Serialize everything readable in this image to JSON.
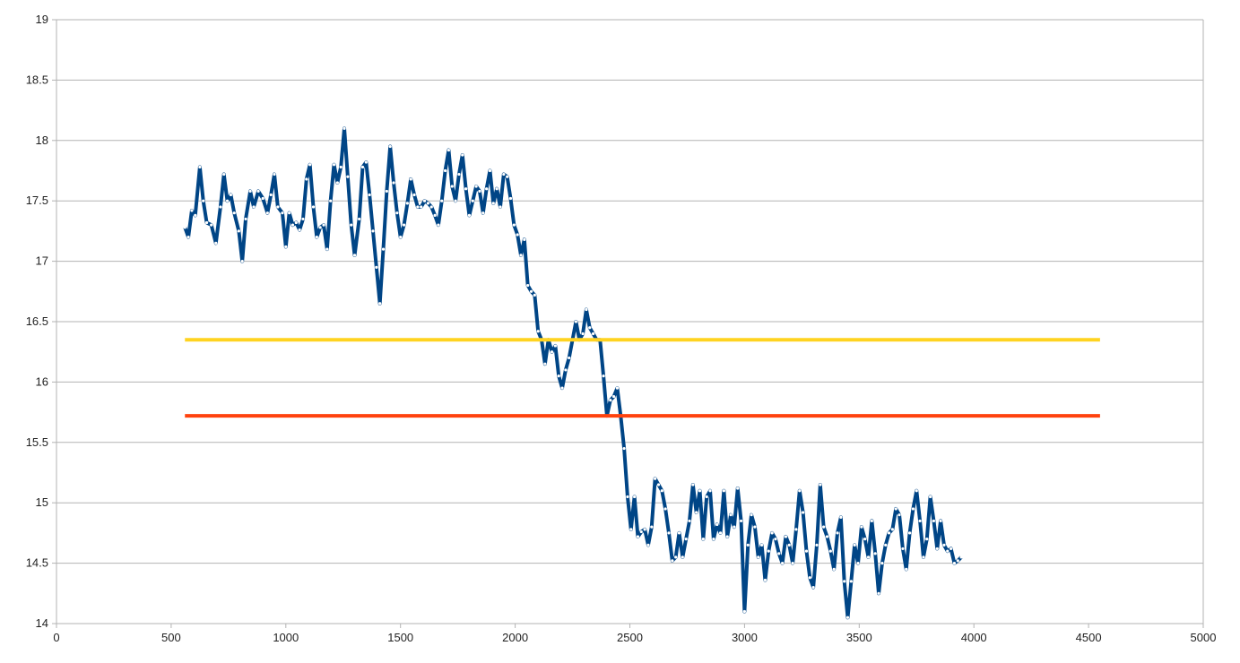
{
  "chart_data": {
    "type": "line",
    "title": "",
    "xlabel": "",
    "ylabel": "",
    "xlim": [
      0,
      5000
    ],
    "ylim": [
      14,
      19
    ],
    "xticks": [
      0,
      500,
      1000,
      1500,
      2000,
      2500,
      3000,
      3500,
      4000,
      4500,
      5000
    ],
    "yticks": [
      14,
      14.5,
      15,
      15.5,
      16,
      16.5,
      17,
      17.5,
      18,
      18.5,
      19
    ],
    "grid": "horizontal",
    "legend": "none",
    "series": [
      {
        "color": "#004586",
        "points": [
          [
            560,
            17.28
          ],
          [
            575,
            17.2
          ],
          [
            590,
            17.42
          ],
          [
            605,
            17.38
          ],
          [
            625,
            17.78
          ],
          [
            640,
            17.5
          ],
          [
            655,
            17.32
          ],
          [
            675,
            17.3
          ],
          [
            695,
            17.15
          ],
          [
            715,
            17.45
          ],
          [
            730,
            17.72
          ],
          [
            745,
            17.5
          ],
          [
            760,
            17.55
          ],
          [
            775,
            17.4
          ],
          [
            795,
            17.25
          ],
          [
            810,
            17.0
          ],
          [
            825,
            17.35
          ],
          [
            845,
            17.58
          ],
          [
            860,
            17.45
          ],
          [
            880,
            17.58
          ],
          [
            900,
            17.52
          ],
          [
            920,
            17.4
          ],
          [
            935,
            17.55
          ],
          [
            950,
            17.72
          ],
          [
            965,
            17.45
          ],
          [
            985,
            17.4
          ],
          [
            1000,
            17.12
          ],
          [
            1015,
            17.4
          ],
          [
            1030,
            17.3
          ],
          [
            1045,
            17.32
          ],
          [
            1060,
            17.26
          ],
          [
            1075,
            17.35
          ],
          [
            1090,
            17.68
          ],
          [
            1105,
            17.8
          ],
          [
            1120,
            17.45
          ],
          [
            1135,
            17.2
          ],
          [
            1150,
            17.28
          ],
          [
            1165,
            17.3
          ],
          [
            1180,
            17.1
          ],
          [
            1195,
            17.5
          ],
          [
            1210,
            17.8
          ],
          [
            1225,
            17.65
          ],
          [
            1240,
            17.78
          ],
          [
            1255,
            18.1
          ],
          [
            1270,
            17.7
          ],
          [
            1285,
            17.3
          ],
          [
            1300,
            17.05
          ],
          [
            1320,
            17.35
          ],
          [
            1335,
            17.78
          ],
          [
            1350,
            17.82
          ],
          [
            1365,
            17.55
          ],
          [
            1380,
            17.25
          ],
          [
            1395,
            16.95
          ],
          [
            1410,
            16.65
          ],
          [
            1425,
            17.1
          ],
          [
            1440,
            17.58
          ],
          [
            1455,
            17.95
          ],
          [
            1470,
            17.65
          ],
          [
            1485,
            17.4
          ],
          [
            1500,
            17.2
          ],
          [
            1515,
            17.3
          ],
          [
            1530,
            17.48
          ],
          [
            1545,
            17.68
          ],
          [
            1560,
            17.55
          ],
          [
            1575,
            17.45
          ],
          [
            1590,
            17.45
          ],
          [
            1605,
            17.5
          ],
          [
            1620,
            17.48
          ],
          [
            1635,
            17.45
          ],
          [
            1650,
            17.38
          ],
          [
            1665,
            17.3
          ],
          [
            1680,
            17.5
          ],
          [
            1695,
            17.75
          ],
          [
            1710,
            17.92
          ],
          [
            1725,
            17.62
          ],
          [
            1740,
            17.5
          ],
          [
            1755,
            17.72
          ],
          [
            1770,
            17.88
          ],
          [
            1785,
            17.6
          ],
          [
            1800,
            17.38
          ],
          [
            1815,
            17.5
          ],
          [
            1830,
            17.62
          ],
          [
            1845,
            17.58
          ],
          [
            1860,
            17.4
          ],
          [
            1875,
            17.6
          ],
          [
            1890,
            17.75
          ],
          [
            1905,
            17.48
          ],
          [
            1920,
            17.6
          ],
          [
            1935,
            17.45
          ],
          [
            1950,
            17.72
          ],
          [
            1965,
            17.7
          ],
          [
            1980,
            17.52
          ],
          [
            1995,
            17.3
          ],
          [
            2010,
            17.22
          ],
          [
            2025,
            17.05
          ],
          [
            2040,
            17.18
          ],
          [
            2055,
            16.8
          ],
          [
            2070,
            16.75
          ],
          [
            2085,
            16.72
          ],
          [
            2100,
            16.42
          ],
          [
            2115,
            16.35
          ],
          [
            2130,
            16.15
          ],
          [
            2145,
            16.35
          ],
          [
            2160,
            16.25
          ],
          [
            2175,
            16.3
          ],
          [
            2190,
            16.05
          ],
          [
            2205,
            15.95
          ],
          [
            2220,
            16.1
          ],
          [
            2235,
            16.2
          ],
          [
            2250,
            16.35
          ],
          [
            2265,
            16.5
          ],
          [
            2280,
            16.35
          ],
          [
            2295,
            16.4
          ],
          [
            2310,
            16.6
          ],
          [
            2325,
            16.45
          ],
          [
            2340,
            16.4
          ],
          [
            2355,
            16.35
          ],
          [
            2370,
            16.35
          ],
          [
            2385,
            16.05
          ],
          [
            2400,
            15.72
          ],
          [
            2415,
            15.85
          ],
          [
            2430,
            15.88
          ],
          [
            2445,
            15.95
          ],
          [
            2460,
            15.72
          ],
          [
            2475,
            15.45
          ],
          [
            2490,
            15.05
          ],
          [
            2505,
            14.78
          ],
          [
            2520,
            15.05
          ],
          [
            2535,
            14.72
          ],
          [
            2550,
            14.76
          ],
          [
            2565,
            14.78
          ],
          [
            2580,
            14.65
          ],
          [
            2595,
            14.8
          ],
          [
            2610,
            15.2
          ],
          [
            2625,
            15.15
          ],
          [
            2640,
            15.1
          ],
          [
            2655,
            14.95
          ],
          [
            2670,
            14.75
          ],
          [
            2685,
            14.52
          ],
          [
            2700,
            14.55
          ],
          [
            2715,
            14.75
          ],
          [
            2730,
            14.55
          ],
          [
            2745,
            14.7
          ],
          [
            2760,
            14.85
          ],
          [
            2775,
            15.15
          ],
          [
            2790,
            14.92
          ],
          [
            2805,
            15.1
          ],
          [
            2820,
            14.7
          ],
          [
            2835,
            15.05
          ],
          [
            2850,
            15.1
          ],
          [
            2865,
            14.7
          ],
          [
            2880,
            14.82
          ],
          [
            2895,
            14.75
          ],
          [
            2910,
            15.1
          ],
          [
            2925,
            14.72
          ],
          [
            2940,
            14.9
          ],
          [
            2955,
            14.8
          ],
          [
            2970,
            15.12
          ],
          [
            2985,
            14.85
          ],
          [
            3000,
            14.1
          ],
          [
            3015,
            14.65
          ],
          [
            3030,
            14.9
          ],
          [
            3045,
            14.8
          ],
          [
            3060,
            14.55
          ],
          [
            3075,
            14.65
          ],
          [
            3090,
            14.36
          ],
          [
            3105,
            14.6
          ],
          [
            3120,
            14.75
          ],
          [
            3135,
            14.7
          ],
          [
            3150,
            14.58
          ],
          [
            3165,
            14.5
          ],
          [
            3180,
            14.72
          ],
          [
            3195,
            14.65
          ],
          [
            3210,
            14.5
          ],
          [
            3225,
            14.78
          ],
          [
            3240,
            15.1
          ],
          [
            3255,
            14.92
          ],
          [
            3270,
            14.6
          ],
          [
            3285,
            14.38
          ],
          [
            3300,
            14.3
          ],
          [
            3315,
            14.65
          ],
          [
            3330,
            15.15
          ],
          [
            3345,
            14.8
          ],
          [
            3360,
            14.72
          ],
          [
            3375,
            14.6
          ],
          [
            3390,
            14.45
          ],
          [
            3405,
            14.75
          ],
          [
            3420,
            14.88
          ],
          [
            3435,
            14.35
          ],
          [
            3450,
            14.05
          ],
          [
            3465,
            14.35
          ],
          [
            3480,
            14.65
          ],
          [
            3495,
            14.5
          ],
          [
            3510,
            14.8
          ],
          [
            3525,
            14.7
          ],
          [
            3540,
            14.55
          ],
          [
            3555,
            14.85
          ],
          [
            3570,
            14.58
          ],
          [
            3585,
            14.25
          ],
          [
            3600,
            14.5
          ],
          [
            3615,
            14.65
          ],
          [
            3630,
            14.75
          ],
          [
            3645,
            14.78
          ],
          [
            3660,
            14.95
          ],
          [
            3675,
            14.9
          ],
          [
            3690,
            14.62
          ],
          [
            3705,
            14.45
          ],
          [
            3720,
            14.75
          ],
          [
            3735,
            14.95
          ],
          [
            3750,
            15.1
          ],
          [
            3765,
            14.85
          ],
          [
            3780,
            14.55
          ],
          [
            3795,
            14.7
          ],
          [
            3810,
            15.05
          ],
          [
            3825,
            14.85
          ],
          [
            3840,
            14.62
          ],
          [
            3855,
            14.85
          ],
          [
            3870,
            14.65
          ],
          [
            3885,
            14.6
          ],
          [
            3900,
            14.62
          ],
          [
            3915,
            14.5
          ],
          [
            3930,
            14.52
          ],
          [
            3945,
            14.55
          ]
        ]
      },
      {
        "color": "#ffd320",
        "points": [
          [
            560,
            16.35
          ],
          [
            4550,
            16.35
          ]
        ]
      },
      {
        "color": "#ff420e",
        "points": [
          [
            560,
            15.72
          ],
          [
            4550,
            15.72
          ]
        ]
      }
    ]
  }
}
